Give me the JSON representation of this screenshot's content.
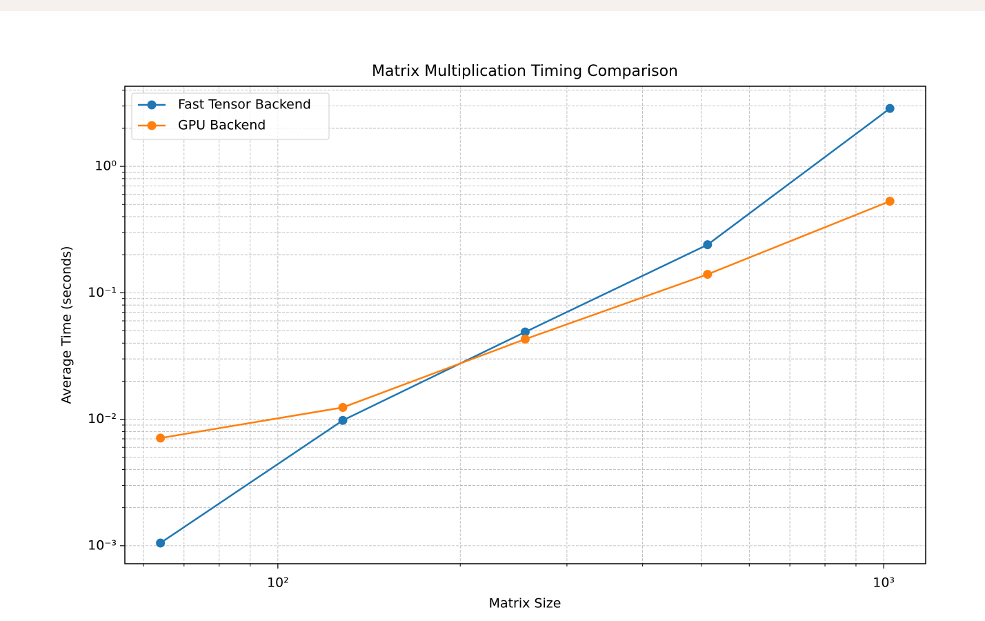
{
  "chart_data": {
    "type": "line",
    "title": "Matrix Multiplication Timing Comparison",
    "x_label": "Matrix Size",
    "y_label": "Average Time (seconds)",
    "x": [
      64,
      128,
      256,
      512,
      1024
    ],
    "series": [
      {
        "name": "Fast Tensor Backend",
        "color": "#1f77b4",
        "values": [
          0.00105,
          0.0098,
          0.049,
          0.24,
          2.87
        ]
      },
      {
        "name": "GPU Backend",
        "color": "#ff7f0e",
        "values": [
          0.0071,
          0.0124,
          0.043,
          0.14,
          0.53
        ]
      }
    ],
    "x_log": true,
    "y_log": true,
    "xlim": [
      55.9,
      1173
    ],
    "ylim": [
      0.00072,
      4.3
    ],
    "xticks": [
      {
        "value": 100,
        "label": "10²"
      },
      {
        "value": 1000,
        "label": "10³"
      }
    ],
    "yticks": [
      {
        "value": 0.001,
        "label": "10⁻³"
      },
      {
        "value": 0.01,
        "label": "10⁻²"
      },
      {
        "value": 0.1,
        "label": "10⁻¹"
      },
      {
        "value": 1,
        "label": "10⁰"
      }
    ],
    "xminorticks": [
      60,
      70,
      80,
      90,
      200,
      300,
      400,
      500,
      600,
      700,
      800,
      900
    ],
    "yminorticks": [
      0.002,
      0.003,
      0.004,
      0.005,
      0.006,
      0.007,
      0.008,
      0.009,
      0.02,
      0.03,
      0.04,
      0.05,
      0.06,
      0.07,
      0.08,
      0.09,
      0.2,
      0.3,
      0.4,
      0.5,
      0.6,
      0.7,
      0.8,
      0.9,
      2,
      3,
      4
    ],
    "grid": true,
    "minor_grid": true,
    "legend": "upper left"
  }
}
